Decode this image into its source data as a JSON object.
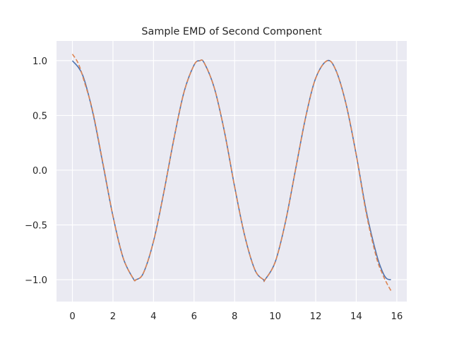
{
  "chart_data": {
    "type": "line",
    "title": "Sample EMD of Second Component",
    "xlabel": "",
    "ylabel": "",
    "xlim": [
      -0.785,
      16.493
    ],
    "ylim": [
      -1.2,
      1.18
    ],
    "x_ticks": [
      0,
      2,
      4,
      6,
      8,
      10,
      12,
      14,
      16
    ],
    "x_tick_labels": [
      "0",
      "2",
      "4",
      "6",
      "8",
      "10",
      "12",
      "14",
      "16"
    ],
    "y_ticks": [
      1.0,
      0.5,
      0.0,
      -0.5,
      -1.0
    ],
    "y_tick_labels": [
      "1.0",
      "0.5",
      "0.0",
      "−0.5",
      "−1.0"
    ],
    "grid": true,
    "background": "#eaeaf2",
    "series": [
      {
        "style": "solid",
        "color": "#4c72b0",
        "x": [
          0,
          0.5,
          1,
          1.5,
          2,
          2.5,
          3,
          3.14,
          3.5,
          4,
          4.5,
          5,
          5.5,
          6,
          6.28,
          6.5,
          7,
          7.5,
          8,
          8.5,
          9,
          9.42,
          9.5,
          10,
          10.5,
          11,
          11.5,
          12,
          12.57,
          13,
          13.5,
          14,
          14.5,
          15,
          15.3,
          15.5,
          15.71
        ],
        "y": [
          1.0,
          0.87,
          0.53,
          0.06,
          -0.42,
          -0.8,
          -0.99,
          -1.0,
          -0.94,
          -0.65,
          -0.21,
          0.28,
          0.71,
          0.96,
          1.0,
          0.98,
          0.75,
          0.35,
          -0.15,
          -0.6,
          -0.91,
          -1.0,
          -1.0,
          -0.84,
          -0.48,
          0.0,
          0.48,
          0.84,
          1.0,
          0.91,
          0.6,
          0.14,
          -0.38,
          -0.77,
          -0.93,
          -0.99,
          -1.0
        ]
      },
      {
        "style": "dashed",
        "color": "#dd8452",
        "x": [
          0,
          0.3,
          0.6,
          1,
          1.5,
          2,
          2.5,
          3,
          3.14,
          3.5,
          4,
          4.5,
          5,
          5.5,
          6,
          6.28,
          6.5,
          7,
          7.5,
          8,
          8.5,
          9,
          9.42,
          9.5,
          10,
          10.5,
          11,
          11.5,
          12,
          12.57,
          13,
          13.5,
          14,
          14.5,
          15,
          15.3,
          15.5,
          15.71
        ],
        "y": [
          1.06,
          0.97,
          0.8,
          0.54,
          0.07,
          -0.42,
          -0.8,
          -0.99,
          -1.0,
          -0.94,
          -0.65,
          -0.21,
          0.28,
          0.71,
          0.96,
          1.0,
          0.98,
          0.75,
          0.35,
          -0.15,
          -0.6,
          -0.91,
          -1.0,
          -1.0,
          -0.84,
          -0.48,
          0.0,
          0.48,
          0.84,
          1.0,
          0.91,
          0.6,
          0.14,
          -0.4,
          -0.8,
          -0.95,
          -1.03,
          -1.1
        ]
      }
    ]
  }
}
